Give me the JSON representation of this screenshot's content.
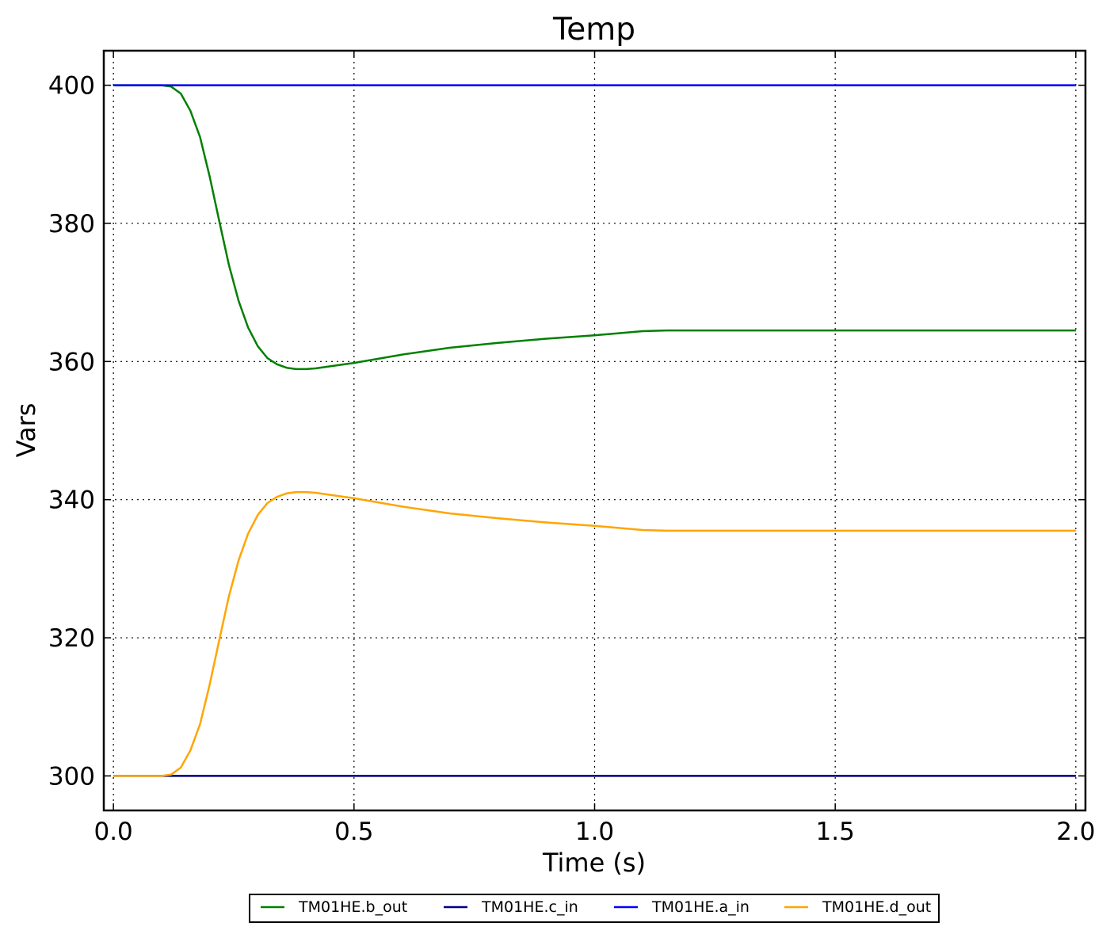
{
  "chart_data": {
    "type": "line",
    "title": "Temp",
    "xlabel": "Time (s)",
    "ylabel": "Vars",
    "xlim": [
      -0.02,
      2.02
    ],
    "ylim": [
      295,
      405
    ],
    "xticks": [
      0.0,
      0.5,
      1.0,
      1.5,
      2.0
    ],
    "xtick_labels": [
      "0.0",
      "0.5",
      "1.0",
      "1.5",
      "2.0"
    ],
    "yticks": [
      300,
      320,
      340,
      360,
      380,
      400
    ],
    "ytick_labels": [
      "300",
      "320",
      "340",
      "360",
      "380",
      "400"
    ],
    "grid": true,
    "legend_position": "bottom-center",
    "series": [
      {
        "name": "TM01HE.b_out",
        "color": "#008000",
        "x": [
          0.0,
          0.1,
          0.12,
          0.14,
          0.16,
          0.18,
          0.2,
          0.22,
          0.24,
          0.26,
          0.28,
          0.3,
          0.32,
          0.34,
          0.36,
          0.38,
          0.4,
          0.42,
          0.45,
          0.5,
          0.6,
          0.7,
          0.8,
          0.9,
          1.0,
          1.05,
          1.1,
          1.15,
          1.2,
          1.5,
          2.0
        ],
        "y": [
          400,
          400,
          399.8,
          398.8,
          396.3,
          392.5,
          386.8,
          380.3,
          374.0,
          368.8,
          364.9,
          362.2,
          360.5,
          359.6,
          359.1,
          358.9,
          358.9,
          359.0,
          359.3,
          359.8,
          361.0,
          362.0,
          362.7,
          363.3,
          363.8,
          364.1,
          364.4,
          364.5,
          364.5,
          364.5,
          364.5
        ]
      },
      {
        "name": "TM01HE.c_in",
        "color": "#000080",
        "x": [
          0.0,
          2.0
        ],
        "y": [
          300,
          300
        ]
      },
      {
        "name": "TM01HE.a_in",
        "color": "#0000ff",
        "x": [
          0.0,
          2.0
        ],
        "y": [
          400,
          400
        ]
      },
      {
        "name": "TM01HE.d_out",
        "color": "#ffa500",
        "x": [
          0.0,
          0.1,
          0.12,
          0.14,
          0.16,
          0.18,
          0.2,
          0.22,
          0.24,
          0.26,
          0.28,
          0.3,
          0.32,
          0.34,
          0.36,
          0.38,
          0.4,
          0.42,
          0.45,
          0.5,
          0.6,
          0.7,
          0.8,
          0.9,
          1.0,
          1.05,
          1.1,
          1.15,
          1.2,
          1.5,
          2.0
        ],
        "y": [
          300,
          300,
          300.2,
          301.2,
          303.7,
          307.5,
          313.2,
          319.7,
          326.0,
          331.2,
          335.1,
          337.8,
          339.5,
          340.4,
          340.9,
          341.1,
          341.1,
          341.0,
          340.7,
          340.2,
          339.0,
          338.0,
          337.3,
          336.7,
          336.2,
          335.9,
          335.6,
          335.5,
          335.5,
          335.5,
          335.5
        ]
      }
    ]
  }
}
